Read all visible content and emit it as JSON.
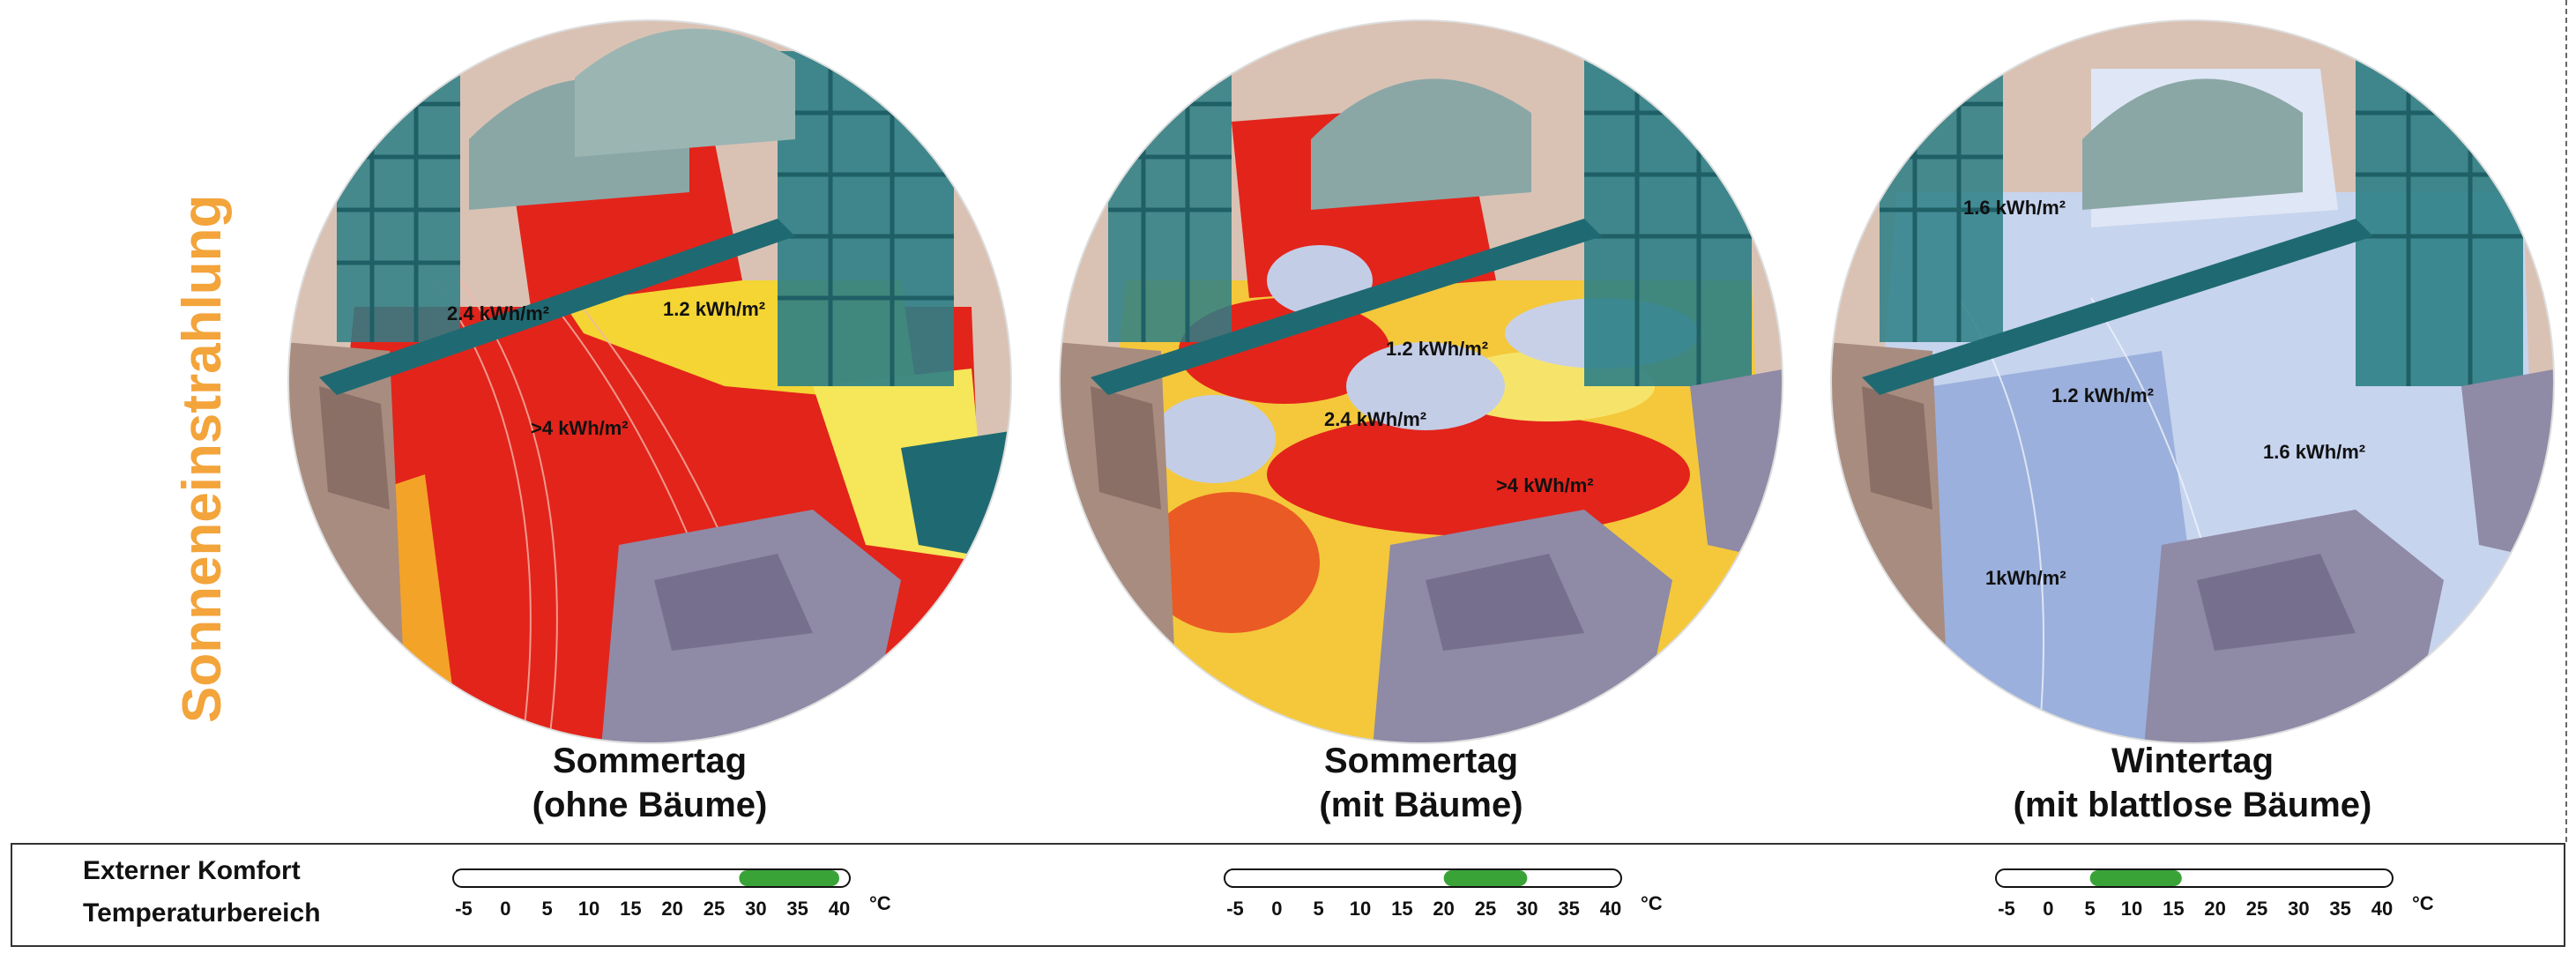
{
  "side_title": "Sonneneinstrahlung",
  "colors": {
    "accent_title": "#f3a43b",
    "comfort_bar": "#3aa338",
    "hot_red": "#e3241b",
    "cold_blue": "#b6c8e8"
  },
  "panels": [
    {
      "caption_line1": "Sommertag",
      "caption_line2": "(ohne Bäume)",
      "labels": [
        "2.4 kWh/m²",
        "1.2 kWh/m²",
        ">4 kWh/m²"
      ]
    },
    {
      "caption_line1": "Sommertag",
      "caption_line2": "(mit Bäume)",
      "labels": [
        "1.2 kWh/m²",
        "2.4 kWh/m²",
        ">4 kWh/m²"
      ]
    },
    {
      "caption_line1": "Wintertag",
      "caption_line2": "(mit blattlose Bäume)",
      "labels": [
        "1.6 kWh/m²",
        "1.2 kWh/m²",
        "1.6 kWh/m²",
        "1kWh/m²"
      ]
    }
  ],
  "legend": {
    "line1": "Externer Komfort",
    "line2": "Temperaturbereich",
    "unit": "°C",
    "ticks": [
      "-5",
      "0",
      "5",
      "10",
      "15",
      "20",
      "25",
      "30",
      "35",
      "40"
    ],
    "ranges": [
      {
        "min": 28,
        "max": 40
      },
      {
        "min": 20,
        "max": 30
      },
      {
        "min": 5,
        "max": 16
      }
    ]
  }
}
